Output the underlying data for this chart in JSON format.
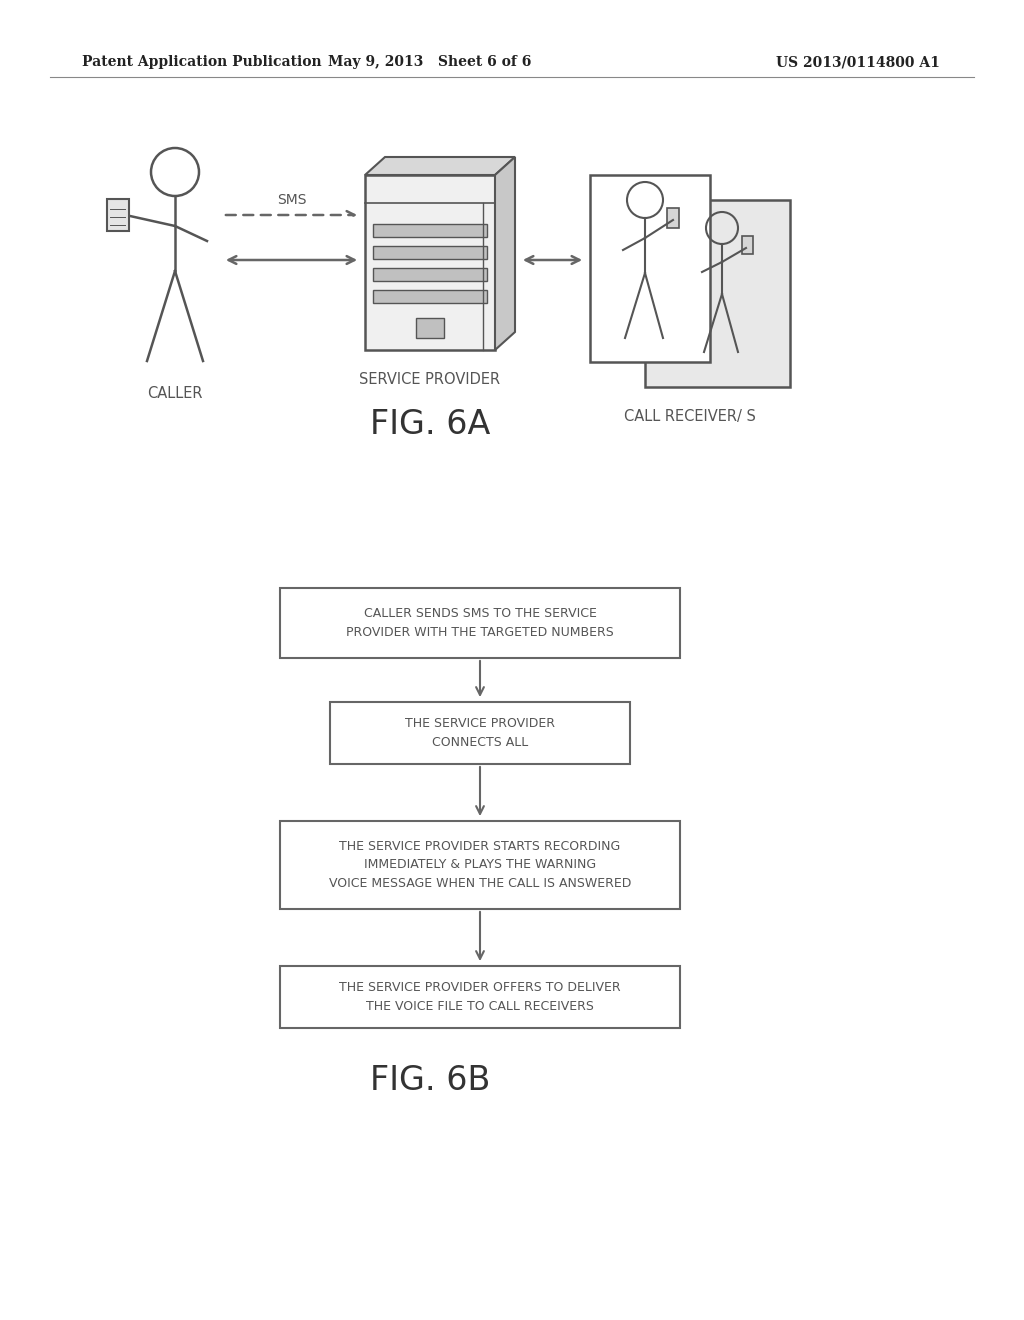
{
  "background_color": "#ffffff",
  "header_left": "Patent Application Publication",
  "header_center": "May 9, 2013   Sheet 6 of 6",
  "header_right": "US 2013/0114800 A1",
  "fig6a_label": "FIG. 6A",
  "fig6b_label": "FIG. 6B",
  "caller_label": "CALLER",
  "service_provider_label": "SERVICE PROVIDER",
  "call_receivers_label": "CALL RECEIVER/ S",
  "sms_label": "SMS",
  "box1_text": "CALLER SENDS SMS TO THE SERVICE\nPROVIDER WITH THE TARGETED NUMBERS",
  "box2_text": "THE SERVICE PROVIDER\nCONNECTS ALL",
  "box3_text": "THE SERVICE PROVIDER STARTS RECORDING\nIMMEDIATELY & PLAYS THE WARNING\nVOICE MESSAGE WHEN THE CALL IS ANSWERED",
  "box4_text": "THE SERVICE PROVIDER OFFERS TO DELIVER\nTHE VOICE FILE TO CALL RECEIVERS",
  "text_color": "#555555",
  "box_edge_color": "#666666",
  "arrow_color": "#666666"
}
